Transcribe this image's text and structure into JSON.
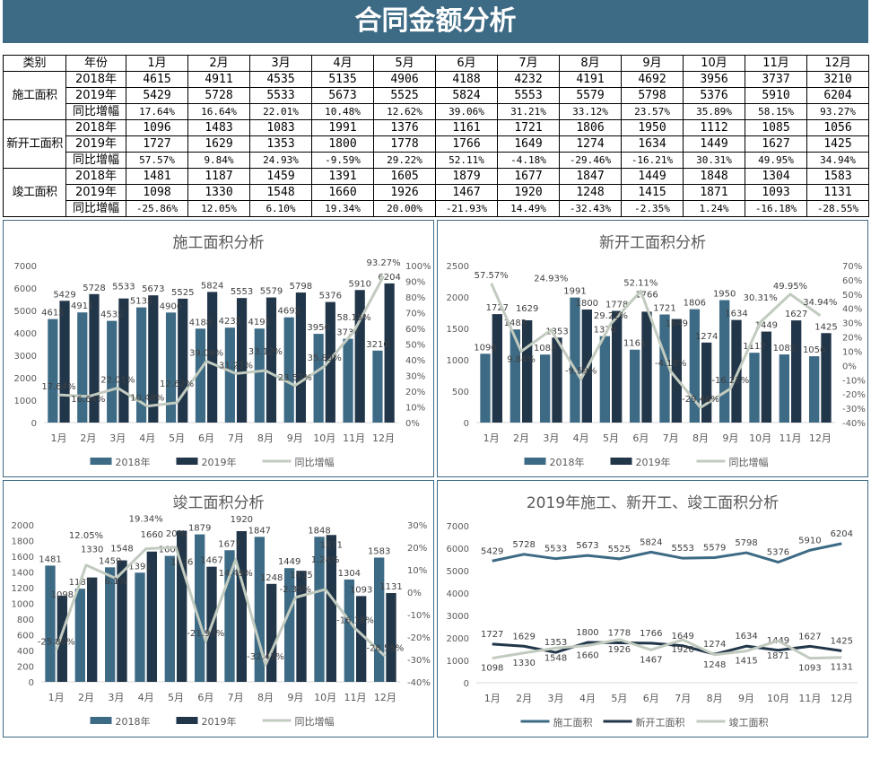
{
  "header": {
    "title": "合同金额分析"
  },
  "table": {
    "headers": [
      "类别",
      "年份",
      "1月",
      "2月",
      "3月",
      "4月",
      "5月",
      "6月",
      "7月",
      "8月",
      "9月",
      "10月",
      "11月",
      "12月"
    ],
    "groups": [
      {
        "name": "施工面积",
        "rows": [
          {
            "label": "2018年",
            "values": [
              "4615",
              "4911",
              "4535",
              "5135",
              "4906",
              "4188",
              "4232",
              "4191",
              "4692",
              "3956",
              "3737",
              "3210"
            ]
          },
          {
            "label": "2019年",
            "values": [
              "5429",
              "5728",
              "5533",
              "5673",
              "5525",
              "5824",
              "5553",
              "5579",
              "5798",
              "5376",
              "5910",
              "6204"
            ]
          },
          {
            "label": "同比增幅",
            "values": [
              "17.64%",
              "16.64%",
              "22.01%",
              "10.48%",
              "12.62%",
              "39.06%",
              "31.21%",
              "33.12%",
              "23.57%",
              "35.89%",
              "58.15%",
              "93.27%"
            ]
          }
        ]
      },
      {
        "name": "新开工面积",
        "rows": [
          {
            "label": "2018年",
            "values": [
              "1096",
              "1483",
              "1083",
              "1991",
              "1376",
              "1161",
              "1721",
              "1806",
              "1950",
              "1112",
              "1085",
              "1056"
            ]
          },
          {
            "label": "2019年",
            "values": [
              "1727",
              "1629",
              "1353",
              "1800",
              "1778",
              "1766",
              "1649",
              "1274",
              "1634",
              "1449",
              "1627",
              "1425"
            ]
          },
          {
            "label": "同比增幅",
            "values": [
              "57.57%",
              "9.84%",
              "24.93%",
              "-9.59%",
              "29.22%",
              "52.11%",
              "-4.18%",
              "-29.46%",
              "-16.21%",
              "30.31%",
              "49.95%",
              "34.94%"
            ]
          }
        ]
      },
      {
        "name": "竣工面积",
        "rows": [
          {
            "label": "2018年",
            "values": [
              "1481",
              "1187",
              "1459",
              "1391",
              "1605",
              "1879",
              "1677",
              "1847",
              "1449",
              "1848",
              "1304",
              "1583"
            ]
          },
          {
            "label": "2019年",
            "values": [
              "1098",
              "1330",
              "1548",
              "1660",
              "1926",
              "1467",
              "1920",
              "1248",
              "1415",
              "1871",
              "1093",
              "1131"
            ]
          },
          {
            "label": "同比增幅",
            "values": [
              "-25.86%",
              "12.05%",
              "6.10%",
              "19.34%",
              "20.00%",
              "-21.93%",
              "14.49%",
              "-32.43%",
              "-2.35%",
              "1.24%",
              "-16.18%",
              "-28.55%"
            ]
          }
        ]
      }
    ]
  },
  "colors": {
    "c2018": "#3d6a84",
    "c2019": "#22364a",
    "growth": "#c2cbbf"
  },
  "chart_data": [
    {
      "type": "bar",
      "title": "施工面积分析",
      "categories": [
        "1月",
        "2月",
        "3月",
        "4月",
        "5月",
        "6月",
        "7月",
        "8月",
        "9月",
        "10月",
        "11月",
        "12月"
      ],
      "ylim": [
        0,
        7000
      ],
      "ystep": 1000,
      "y2lim": [
        0,
        100
      ],
      "y2step": 10,
      "y2unit": "%",
      "legend": "bottom",
      "series": [
        {
          "name": "2018年",
          "kind": "bar",
          "color": "#3d6a84",
          "values": [
            4615,
            4911,
            4535,
            5135,
            4906,
            4188,
            4232,
            4191,
            4692,
            3956,
            3737,
            3210
          ]
        },
        {
          "name": "2019年",
          "kind": "bar",
          "color": "#22364a",
          "values": [
            5429,
            5728,
            5533,
            5673,
            5525,
            5824,
            5553,
            5579,
            5798,
            5376,
            5910,
            6204
          ]
        },
        {
          "name": "同比增幅",
          "kind": "line",
          "axis": "y2",
          "unit": "%",
          "color": "#c2cbbf",
          "values": [
            17.64,
            16.64,
            22.01,
            10.48,
            12.62,
            39.06,
            31.21,
            33.12,
            23.57,
            35.89,
            58.15,
            93.27
          ]
        }
      ]
    },
    {
      "type": "bar",
      "title": "新开工面积分析",
      "categories": [
        "1月",
        "2月",
        "3月",
        "4月",
        "5月",
        "6月",
        "7月",
        "8月",
        "9月",
        "10月",
        "11月",
        "12月"
      ],
      "ylim": [
        0,
        2500
      ],
      "ystep": 500,
      "y2lim": [
        -40,
        70
      ],
      "y2step": 10,
      "y2unit": "%",
      "legend": "bottom",
      "series": [
        {
          "name": "2018年",
          "kind": "bar",
          "color": "#3d6a84",
          "values": [
            1096,
            1483,
            1083,
            1991,
            1376,
            1161,
            1721,
            1806,
            1950,
            1112,
            1085,
            1056
          ]
        },
        {
          "name": "2019年",
          "kind": "bar",
          "color": "#22364a",
          "values": [
            1727,
            1629,
            1353,
            1800,
            1778,
            1766,
            1649,
            1274,
            1634,
            1449,
            1627,
            1425
          ]
        },
        {
          "name": "同比增幅",
          "kind": "line",
          "axis": "y2",
          "unit": "%",
          "color": "#c2cbbf",
          "values": [
            57.57,
            9.84,
            24.93,
            -9.59,
            29.22,
            52.11,
            -4.18,
            -29.46,
            -16.21,
            30.31,
            49.95,
            34.94
          ]
        }
      ]
    },
    {
      "type": "bar",
      "title": "竣工面积分析",
      "categories": [
        "1月",
        "2月",
        "3月",
        "4月",
        "5月",
        "6月",
        "7月",
        "8月",
        "9月",
        "10月",
        "11月",
        "12月"
      ],
      "ylim": [
        0,
        2000
      ],
      "ystep": 200,
      "y2lim": [
        -40,
        30
      ],
      "y2step": 10,
      "y2unit": "%",
      "legend": "bottom",
      "series": [
        {
          "name": "2018年",
          "kind": "bar",
          "color": "#3d6a84",
          "values": [
            1481,
            1187,
            1459,
            1391,
            1605,
            1879,
            1677,
            1847,
            1449,
            1848,
            1304,
            1583
          ]
        },
        {
          "name": "2019年",
          "kind": "bar",
          "color": "#22364a",
          "values": [
            1098,
            1330,
            1548,
            1660,
            1926,
            1467,
            1920,
            1248,
            1415,
            1871,
            1093,
            1131
          ]
        },
        {
          "name": "同比增幅",
          "kind": "line",
          "axis": "y2",
          "unit": "%",
          "color": "#c2cbbf",
          "values": [
            -25.86,
            12.05,
            6.1,
            19.34,
            20.0,
            -21.93,
            14.49,
            -32.43,
            -2.35,
            1.24,
            -16.18,
            -28.55
          ]
        }
      ]
    },
    {
      "type": "line",
      "title": "2019年施工、新开工、竣工面积分析",
      "categories": [
        "1月",
        "2月",
        "3月",
        "4月",
        "5月",
        "6月",
        "7月",
        "8月",
        "9月",
        "10月",
        "11月",
        "12月"
      ],
      "ylim": [
        0,
        7000
      ],
      "ystep": 1000,
      "legend": "bottom",
      "series": [
        {
          "name": "施工面积",
          "kind": "line",
          "color": "#3d6a84",
          "values": [
            5429,
            5728,
            5533,
            5673,
            5525,
            5824,
            5553,
            5579,
            5798,
            5376,
            5910,
            6204
          ]
        },
        {
          "name": "新开工面积",
          "kind": "line",
          "color": "#22364a",
          "values": [
            1727,
            1629,
            1353,
            1800,
            1778,
            1766,
            1649,
            1274,
            1634,
            1449,
            1627,
            1425
          ]
        },
        {
          "name": "竣工面积",
          "kind": "line",
          "color": "#c2cbbf",
          "values": [
            1098,
            1330,
            1548,
            1660,
            1926,
            1467,
            1920,
            1248,
            1415,
            1871,
            1093,
            1131
          ]
        }
      ]
    }
  ]
}
